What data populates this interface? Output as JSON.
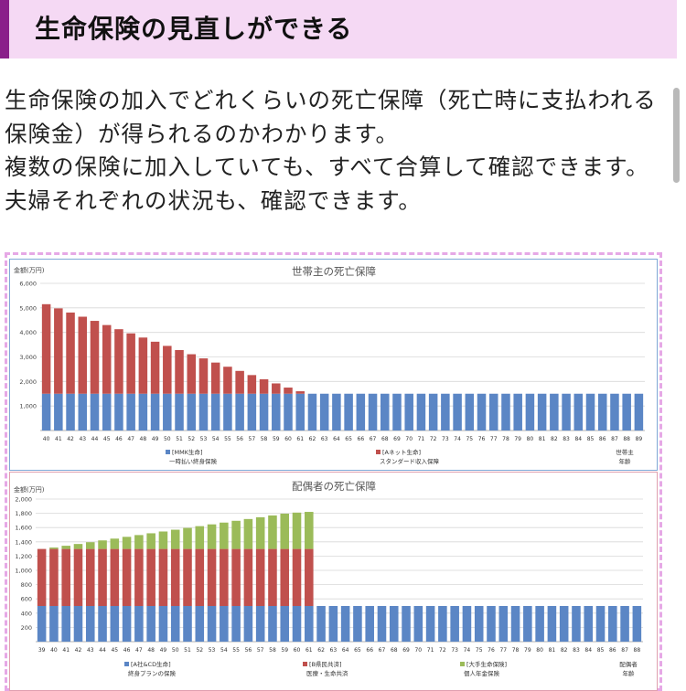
{
  "header": {
    "title": "生命保険の見直しができる"
  },
  "intro": {
    "paragraphs": [
      "生命保険の加入でどれくらいの死亡保障（死亡時に支払われる保険金）が得られるのかわかります。",
      "複数の保険に加入していても、すべて合算して確認できます。",
      "夫婦それぞれの状況も、確認できます。"
    ]
  },
  "chart_data": [
    {
      "type": "bar",
      "stacked": true,
      "title": "世帯主の死亡保障",
      "ylabel": "金額(万円)",
      "ylim": [
        0,
        6000
      ],
      "yticks": [
        1000,
        2000,
        3000,
        4000,
        5000,
        6000
      ],
      "ytick_labels": [
        "1,000",
        "2,000",
        "3,000",
        "4,000",
        "5,000",
        "6,000"
      ],
      "x_caption": [
        "世帯主",
        "年齢"
      ],
      "categories": [
        "40",
        "41",
        "42",
        "43",
        "44",
        "45",
        "46",
        "47",
        "48",
        "49",
        "50",
        "51",
        "52",
        "53",
        "54",
        "55",
        "56",
        "57",
        "58",
        "59",
        "60",
        "61",
        "62",
        "63",
        "64",
        "65",
        "66",
        "67",
        "68",
        "69",
        "70",
        "71",
        "72",
        "73",
        "74",
        "75",
        "76",
        "77",
        "78",
        "79",
        "80",
        "81",
        "82",
        "83",
        "84",
        "85",
        "86",
        "87",
        "88",
        "89"
      ],
      "series": [
        {
          "name": "[MMK生命]",
          "sub": "一時払い終身保険",
          "color": "#5b86c5",
          "values": [
            1500,
            1500,
            1500,
            1500,
            1500,
            1500,
            1500,
            1500,
            1500,
            1500,
            1500,
            1500,
            1500,
            1500,
            1500,
            1500,
            1500,
            1500,
            1500,
            1500,
            1500,
            1500,
            1500,
            1500,
            1500,
            1500,
            1500,
            1500,
            1500,
            1500,
            1500,
            1500,
            1500,
            1500,
            1500,
            1500,
            1500,
            1500,
            1500,
            1500,
            1500,
            1500,
            1500,
            1500,
            1500,
            1500,
            1500,
            1500,
            1500,
            1500
          ]
        },
        {
          "name": "[Aネット生命]",
          "sub": "スタンダード収入保障",
          "color": "#c0504d",
          "values": [
            3650,
            3480,
            3310,
            3140,
            2970,
            2800,
            2630,
            2460,
            2290,
            2120,
            1950,
            1780,
            1610,
            1440,
            1270,
            1100,
            930,
            760,
            590,
            420,
            250,
            100,
            0,
            0,
            0,
            0,
            0,
            0,
            0,
            0,
            0,
            0,
            0,
            0,
            0,
            0,
            0,
            0,
            0,
            0,
            0,
            0,
            0,
            0,
            0,
            0,
            0,
            0,
            0,
            0
          ]
        }
      ]
    },
    {
      "type": "bar",
      "stacked": true,
      "title": "配偶者の死亡保障",
      "ylabel": "金額(万円)",
      "ylim": [
        0,
        2000
      ],
      "yticks": [
        200,
        400,
        600,
        800,
        1000,
        1200,
        1400,
        1600,
        1800,
        2000
      ],
      "ytick_labels": [
        "200",
        "400",
        "600",
        "800",
        "1,000",
        "1,200",
        "1,400",
        "1,600",
        "1,800",
        "2,000"
      ],
      "x_caption": [
        "配偶者",
        "年齢"
      ],
      "categories": [
        "39",
        "40",
        "41",
        "42",
        "43",
        "44",
        "45",
        "46",
        "47",
        "48",
        "49",
        "50",
        "51",
        "52",
        "53",
        "54",
        "55",
        "56",
        "57",
        "58",
        "59",
        "60",
        "61",
        "62",
        "63",
        "64",
        "65",
        "66",
        "67",
        "68",
        "69",
        "70",
        "71",
        "72",
        "73",
        "74",
        "75",
        "76",
        "77",
        "78",
        "79",
        "80",
        "81",
        "82",
        "83",
        "84",
        "85",
        "86",
        "87",
        "88"
      ],
      "series": [
        {
          "name": "[A社&CD生命]",
          "sub": "終身プランの保険",
          "color": "#5b86c5",
          "values": [
            500,
            500,
            500,
            500,
            500,
            500,
            500,
            500,
            500,
            500,
            500,
            500,
            500,
            500,
            500,
            500,
            500,
            500,
            500,
            500,
            500,
            500,
            500,
            500,
            500,
            500,
            500,
            500,
            500,
            500,
            500,
            500,
            500,
            500,
            500,
            500,
            500,
            500,
            500,
            500,
            500,
            500,
            500,
            500,
            500,
            500,
            500,
            500,
            500,
            500
          ]
        },
        {
          "name": "[B県民共済]",
          "sub": "医療・生命共済",
          "color": "#c0504d",
          "values": [
            800,
            800,
            800,
            800,
            800,
            800,
            800,
            800,
            800,
            800,
            800,
            800,
            800,
            800,
            800,
            800,
            800,
            800,
            800,
            800,
            800,
            800,
            800,
            0,
            0,
            0,
            0,
            0,
            0,
            0,
            0,
            0,
            0,
            0,
            0,
            0,
            0,
            0,
            0,
            0,
            0,
            0,
            0,
            0,
            0,
            0,
            0,
            0,
            0,
            0
          ]
        },
        {
          "name": "[大手生命保険]",
          "sub": "個人年金保険",
          "color": "#9bbb59",
          "values": [
            0,
            20,
            45,
            70,
            95,
            120,
            145,
            170,
            195,
            220,
            245,
            270,
            295,
            320,
            345,
            370,
            395,
            420,
            445,
            470,
            495,
            510,
            520,
            0,
            0,
            0,
            0,
            0,
            0,
            0,
            0,
            0,
            0,
            0,
            0,
            0,
            0,
            0,
            0,
            0,
            0,
            0,
            0,
            0,
            0,
            0,
            0,
            0,
            0,
            0
          ]
        }
      ]
    }
  ]
}
